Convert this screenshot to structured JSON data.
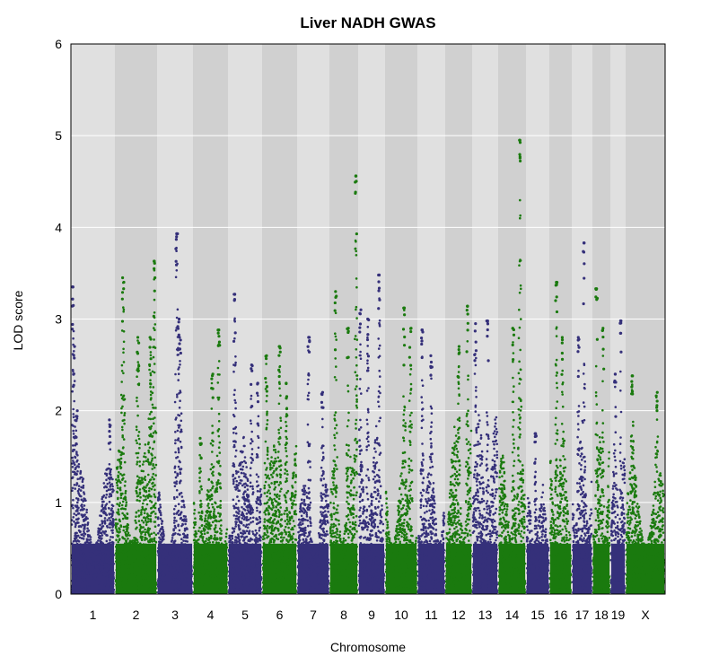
{
  "chart_data": {
    "type": "scatter",
    "title": "Liver NADH GWAS",
    "xlabel": "Chromosome",
    "ylabel": "LOD score",
    "ylim": [
      0,
      6
    ],
    "yticks": [
      "0",
      "1",
      "2",
      "3",
      "4",
      "5",
      "6"
    ],
    "grid": true,
    "colors": {
      "odd": "#35307a",
      "even": "#1a7a0e",
      "band_light": "#e0e0e0",
      "band_dark": "#d0d0d0",
      "gridline": "#ffffff"
    },
    "chromosomes": [
      {
        "name": "1",
        "peak": 3.35,
        "base": 1.3,
        "peaks": [
          [
            0.02,
            3.35
          ],
          [
            0.05,
            2.7
          ],
          [
            0.12,
            2.0
          ],
          [
            0.9,
            1.9
          ]
        ]
      },
      {
        "name": "2",
        "peak": 3.63,
        "base": 1.5,
        "peaks": [
          [
            0.18,
            3.45
          ],
          [
            0.55,
            2.8
          ],
          [
            0.95,
            3.63
          ],
          [
            0.85,
            2.8
          ]
        ]
      },
      {
        "name": "3",
        "peak": 3.93,
        "base": 1.1,
        "peaks": [
          [
            0.55,
            3.93
          ],
          [
            0.6,
            3.0
          ],
          [
            0.65,
            2.8
          ]
        ]
      },
      {
        "name": "4",
        "peak": 2.88,
        "base": 1.3,
        "peaks": [
          [
            0.55,
            2.4
          ],
          [
            0.75,
            2.88
          ],
          [
            0.2,
            1.7
          ]
        ]
      },
      {
        "name": "5",
        "peak": 3.27,
        "base": 1.6,
        "peaks": [
          [
            0.18,
            3.27
          ],
          [
            0.7,
            2.5
          ],
          [
            0.9,
            2.3
          ]
        ]
      },
      {
        "name": "6",
        "peak": 2.7,
        "base": 1.5,
        "peaks": [
          [
            0.1,
            2.6
          ],
          [
            0.5,
            2.7
          ],
          [
            0.7,
            2.3
          ]
        ]
      },
      {
        "name": "7",
        "peak": 2.8,
        "base": 1.1,
        "peaks": [
          [
            0.35,
            2.8
          ],
          [
            0.8,
            2.2
          ]
        ]
      },
      {
        "name": "8",
        "peak": 4.56,
        "base": 1.4,
        "peaks": [
          [
            0.2,
            3.3
          ],
          [
            0.65,
            2.9
          ],
          [
            0.95,
            4.56
          ]
        ]
      },
      {
        "name": "9",
        "peak": 3.48,
        "base": 1.7,
        "peaks": [
          [
            0.05,
            3.1
          ],
          [
            0.35,
            3.0
          ],
          [
            0.8,
            3.48
          ]
        ]
      },
      {
        "name": "10",
        "peak": 3.12,
        "base": 1.3,
        "peaks": [
          [
            0.6,
            3.12
          ],
          [
            0.8,
            2.9
          ]
        ]
      },
      {
        "name": "11",
        "peak": 2.88,
        "base": 1.4,
        "peaks": [
          [
            0.15,
            2.88
          ],
          [
            0.5,
            2.6
          ]
        ]
      },
      {
        "name": "12",
        "peak": 3.14,
        "base": 1.7,
        "peaks": [
          [
            0.85,
            3.14
          ],
          [
            0.5,
            2.7
          ]
        ]
      },
      {
        "name": "13",
        "peak": 2.98,
        "base": 1.8,
        "peaks": [
          [
            0.1,
            2.95
          ],
          [
            0.6,
            2.98
          ]
        ]
      },
      {
        "name": "14",
        "peak": 4.95,
        "base": 1.4,
        "peaks": [
          [
            0.55,
            2.9
          ],
          [
            0.8,
            4.95
          ]
        ]
      },
      {
        "name": "15",
        "peak": 1.75,
        "base": 1.1,
        "peaks": [
          [
            0.4,
            1.75
          ]
        ]
      },
      {
        "name": "16",
        "peak": 3.4,
        "base": 1.7,
        "peaks": [
          [
            0.3,
            3.4
          ],
          [
            0.6,
            2.8
          ]
        ]
      },
      {
        "name": "17",
        "peak": 3.83,
        "base": 1.8,
        "peaks": [
          [
            0.6,
            3.83
          ],
          [
            0.3,
            2.8
          ]
        ]
      },
      {
        "name": "18",
        "peak": 3.33,
        "base": 1.6,
        "peaks": [
          [
            0.2,
            3.33
          ],
          [
            0.6,
            2.9
          ]
        ]
      },
      {
        "name": "19",
        "peak": 2.98,
        "base": 1.6,
        "peaks": [
          [
            0.7,
            2.98
          ],
          [
            0.3,
            2.4
          ]
        ]
      },
      {
        "name": "X",
        "peak": 2.38,
        "base": 1.3,
        "peaks": [
          [
            0.15,
            2.38
          ],
          [
            0.8,
            2.2
          ]
        ]
      }
    ]
  }
}
